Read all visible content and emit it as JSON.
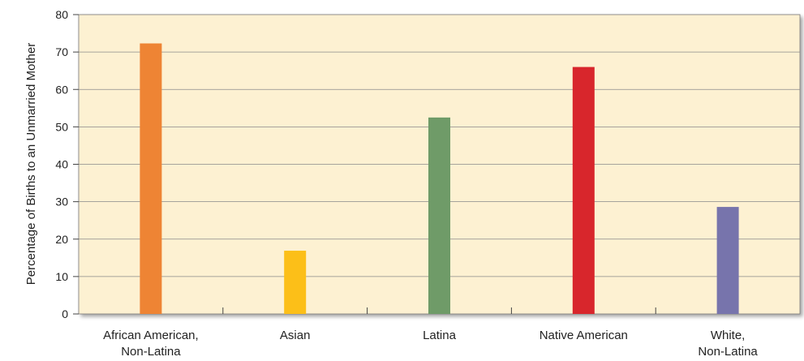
{
  "chart_data": {
    "type": "bar",
    "ylabel": "Percentage of Births to an Unmarried Mother",
    "xlabel": "",
    "ylim": [
      0,
      80
    ],
    "yticks": [
      0,
      10,
      20,
      30,
      40,
      50,
      60,
      70,
      80
    ],
    "categories": [
      [
        "African American,",
        "Non-Latina"
      ],
      [
        "Asian"
      ],
      [
        "Latina"
      ],
      [
        "Native American"
      ],
      [
        "White,",
        "Non-Latina"
      ]
    ],
    "values": [
      72.3,
      16.9,
      52.5,
      66.0,
      28.6
    ],
    "colors": [
      "#ee8434",
      "#fcbf18",
      "#6f9b68",
      "#d8262c",
      "#7774ac"
    ],
    "background": "#fdf1d2",
    "grid": true,
    "legend": "none"
  }
}
